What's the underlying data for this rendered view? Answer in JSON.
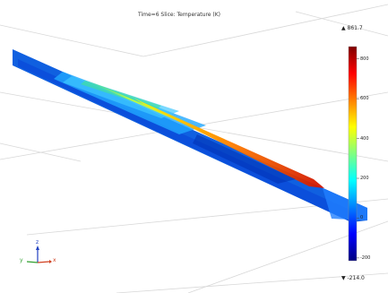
{
  "title": "Time=6  Slice: Temperature (K)",
  "colorbar": {
    "max_label": "▲ 861.7",
    "min_label": "▼ -214.0",
    "max_value": 861.7,
    "min_value": -214.0,
    "ticks": [
      {
        "value": 800,
        "label": "800"
      },
      {
        "value": 600,
        "label": "600"
      },
      {
        "value": 400,
        "label": "400"
      },
      {
        "value": 200,
        "label": "200"
      },
      {
        "value": 0,
        "label": "0"
      },
      {
        "value": -200,
        "label": "-200"
      }
    ],
    "colormap": [
      "#00007f",
      "#0000ff",
      "#0080ff",
      "#00ffff",
      "#80ff80",
      "#ffff00",
      "#ff8000",
      "#ff0000",
      "#7f0000"
    ]
  },
  "axes": {
    "labels": {
      "x": "x",
      "y": "y",
      "z": "z"
    },
    "colors": {
      "x": "#d04020",
      "y": "#30a030",
      "z": "#2040c0"
    }
  }
}
